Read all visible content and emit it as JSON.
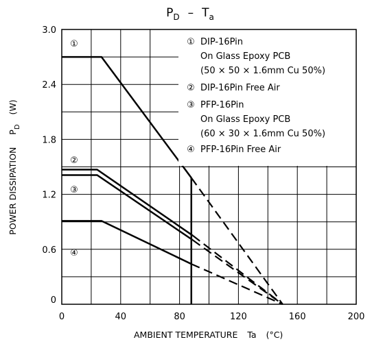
{
  "chart_data": {
    "type": "line",
    "title": {
      "main": "P",
      "main_sub": "D",
      "dash": "–",
      "var": "T",
      "var_sub": "a"
    },
    "xlabel": {
      "text": "AMBIENT TEMPERATURE",
      "var": "Ta",
      "unit": "(°C)"
    },
    "ylabel": {
      "text": "POWER DISSIPATION",
      "var": "P",
      "var_sub": "D",
      "unit": "(W)"
    },
    "xlim": [
      0,
      200
    ],
    "ylim": [
      0,
      3.0
    ],
    "x_ticks": [
      "0",
      "40",
      "80",
      "120",
      "160",
      "200"
    ],
    "y_ticks": [
      "0",
      "0.6",
      "1.2",
      "1.8",
      "2.4",
      "3.0"
    ],
    "grid": true,
    "legend": [
      {
        "marker": "①",
        "lines": [
          "DIP-16Pin",
          "On Glass Epoxy PCB",
          "(50 × 50 × 1.6mm Cu 50%)"
        ]
      },
      {
        "marker": "②",
        "lines": [
          "DIP-16Pin Free Air"
        ]
      },
      {
        "marker": "③",
        "lines": [
          "PFP-16Pin",
          "On Glass Epoxy PCB",
          "(60 × 30 × 1.6mm Cu 50%)"
        ]
      },
      {
        "marker": "④",
        "lines": [
          "PFP-16Pin Free Air"
        ]
      }
    ],
    "series": [
      {
        "marker": "①",
        "solid": [
          [
            0,
            2.7
          ],
          [
            27,
            2.7
          ],
          [
            88,
            1.38
          ]
        ],
        "dashed": [
          [
            88,
            1.38
          ],
          [
            150,
            0
          ]
        ]
      },
      {
        "marker": "②",
        "solid": [
          [
            0,
            1.47
          ],
          [
            24,
            1.47
          ],
          [
            89,
            0.75
          ]
        ],
        "dashed": [
          [
            89,
            0.75
          ],
          [
            150,
            0
          ]
        ]
      },
      {
        "marker": "③",
        "solid": [
          [
            0,
            1.41
          ],
          [
            24,
            1.41
          ],
          [
            89,
            0.7
          ]
        ],
        "dashed": [
          [
            89,
            0.7
          ],
          [
            150,
            0
          ]
        ]
      },
      {
        "marker": "④",
        "solid": [
          [
            0,
            0.91
          ],
          [
            27,
            0.91
          ],
          [
            88,
            0.44
          ]
        ],
        "dashed": [
          [
            88,
            0.44
          ],
          [
            150,
            0
          ]
        ]
      }
    ],
    "vertical_line": {
      "x": 88,
      "y_from": 0,
      "y_to": 1.38
    }
  }
}
